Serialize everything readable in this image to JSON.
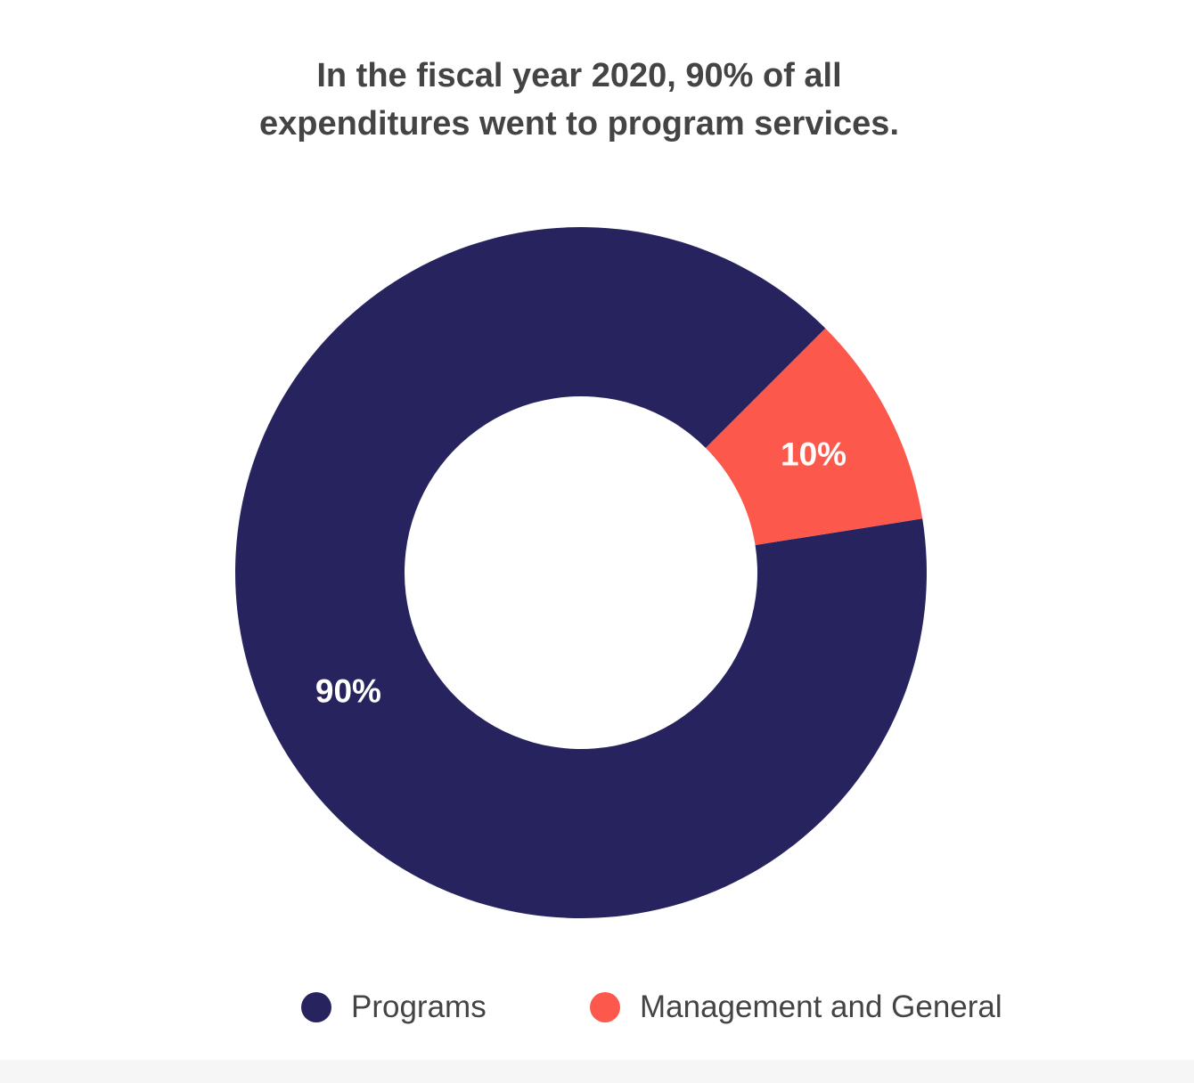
{
  "chart_data": {
    "type": "pie",
    "variant": "donut",
    "title": "In the fiscal year 2020, 90% of all expenditures went to program services.",
    "labels": [
      "Programs",
      "Management and General"
    ],
    "values": [
      90,
      10
    ],
    "data_labels": [
      "90%",
      "10%"
    ],
    "colors": [
      "#26235e",
      "#fc594c"
    ],
    "legend_placement": "bottom"
  }
}
